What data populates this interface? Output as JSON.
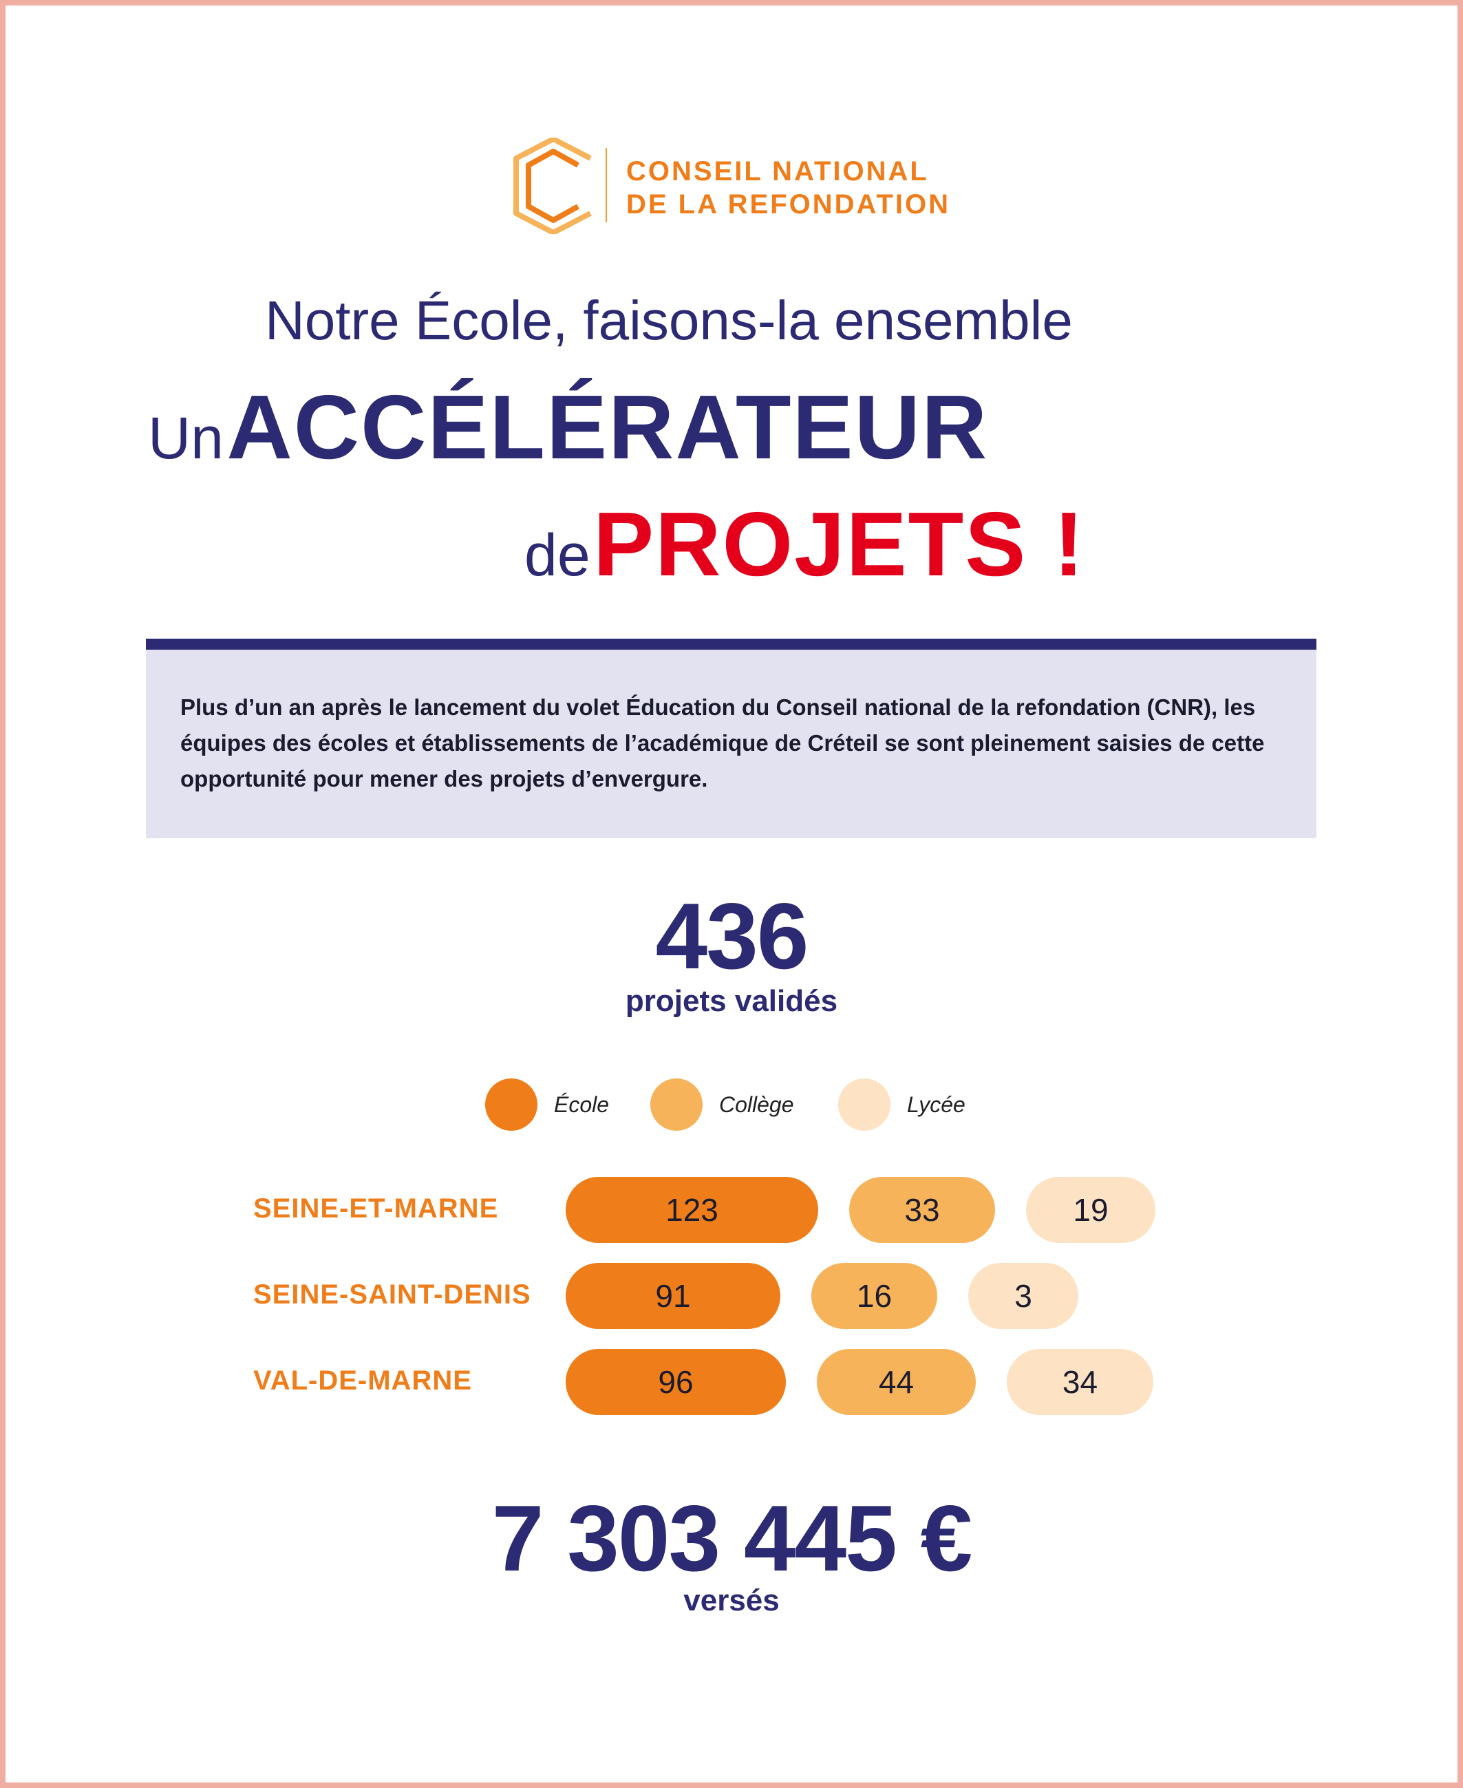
{
  "logo": {
    "line1": "CONSEIL NATIONAL",
    "line2": "DE LA REFONDATION"
  },
  "tagline": "Notre École, faisons-la ensemble",
  "title": {
    "word1": "Un",
    "word2": "ACCÉLÉRATEUR",
    "word3": "de",
    "word4": "PROJETS !"
  },
  "intro": "Plus d’un an après le lancement du volet Éducation du Conseil national de la refondation (CNR), les équipes des écoles et établissements de l’académique de Créteil se sont pleinement saisies de cette opportunité pour mener des projets d’envergure.",
  "stat_projects": {
    "value": "436",
    "label": "projets validés"
  },
  "stat_money": {
    "value": "7 303 445 €",
    "label": "versés"
  },
  "colors": {
    "navy": "#2b2a72",
    "red": "#e4001b",
    "ecole": "#ef7d1a",
    "college": "#f7b35a",
    "lycee": "#fde2c4"
  },
  "chart_data": {
    "type": "bar",
    "categories": [
      "SEINE-ET-MARNE",
      "SEINE-SAINT-DENIS",
      "VAL-DE-MARNE"
    ],
    "series": [
      {
        "name": "École",
        "values": [
          123,
          91,
          96
        ]
      },
      {
        "name": "Collège",
        "values": [
          33,
          16,
          44
        ]
      },
      {
        "name": "Lycée",
        "values": [
          19,
          3,
          34
        ]
      }
    ],
    "legend_position": "top"
  }
}
